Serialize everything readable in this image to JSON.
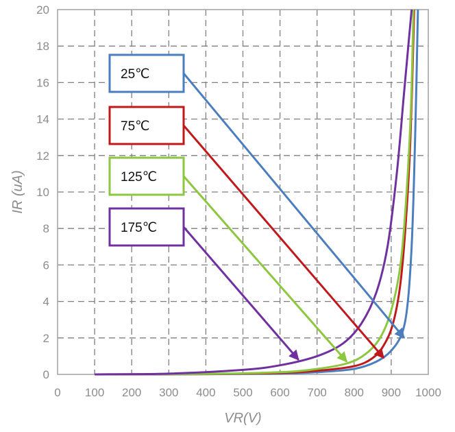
{
  "chart_data": {
    "type": "line",
    "xlabel": "VR(V)",
    "ylabel": "IR (uA)",
    "xlim": [
      0,
      1000
    ],
    "ylim": [
      0,
      20
    ],
    "x_ticks": [
      "0",
      "100",
      "200",
      "300",
      "400",
      "500",
      "600",
      "700",
      "800",
      "900",
      "1000"
    ],
    "y_ticks": [
      "0",
      "2",
      "4",
      "6",
      "8",
      "10",
      "12",
      "14",
      "16",
      "18",
      "20"
    ],
    "grid": true,
    "series": [
      {
        "name": "25℃",
        "color": "#4a7ebf",
        "points": [
          [
            100,
            0.0
          ],
          [
            400,
            0.01
          ],
          [
            600,
            0.05
          ],
          [
            700,
            0.12
          ],
          [
            800,
            0.3
          ],
          [
            860,
            0.7
          ],
          [
            900,
            1.3
          ],
          [
            930,
            2.3
          ],
          [
            945,
            4.0
          ],
          [
            955,
            7.0
          ],
          [
            962,
            11.0
          ],
          [
            968,
            16.0
          ],
          [
            972,
            20.0
          ]
        ],
        "arrow_to": [
          935,
          2.0
        ]
      },
      {
        "name": "75℃",
        "color": "#c0191b",
        "points": [
          [
            100,
            0.0
          ],
          [
            400,
            0.02
          ],
          [
            600,
            0.08
          ],
          [
            700,
            0.2
          ],
          [
            800,
            0.45
          ],
          [
            850,
            0.9
          ],
          [
            880,
            1.6
          ],
          [
            905,
            2.8
          ],
          [
            925,
            5.0
          ],
          [
            940,
            8.5
          ],
          [
            952,
            13.0
          ],
          [
            962,
            20.0
          ]
        ],
        "arrow_to": [
          880,
          0.9
        ]
      },
      {
        "name": "125℃",
        "color": "#8dc63f",
        "points": [
          [
            100,
            0.0
          ],
          [
            400,
            0.03
          ],
          [
            600,
            0.12
          ],
          [
            700,
            0.3
          ],
          [
            780,
            0.6
          ],
          [
            830,
            1.1
          ],
          [
            870,
            2.0
          ],
          [
            900,
            3.5
          ],
          [
            925,
            6.0
          ],
          [
            940,
            9.5
          ],
          [
            953,
            14.5
          ],
          [
            960,
            20.0
          ]
        ],
        "arrow_to": [
          780,
          0.7
        ]
      },
      {
        "name": "175℃",
        "color": "#7030a0",
        "points": [
          [
            100,
            0.0
          ],
          [
            300,
            0.04
          ],
          [
            500,
            0.25
          ],
          [
            600,
            0.5
          ],
          [
            700,
            1.0
          ],
          [
            770,
            1.7
          ],
          [
            820,
            2.8
          ],
          [
            860,
            4.5
          ],
          [
            890,
            7.0
          ],
          [
            915,
            11.0
          ],
          [
            935,
            15.5
          ],
          [
            955,
            20.0
          ]
        ],
        "arrow_to": [
          650,
          0.8
        ]
      }
    ]
  }
}
